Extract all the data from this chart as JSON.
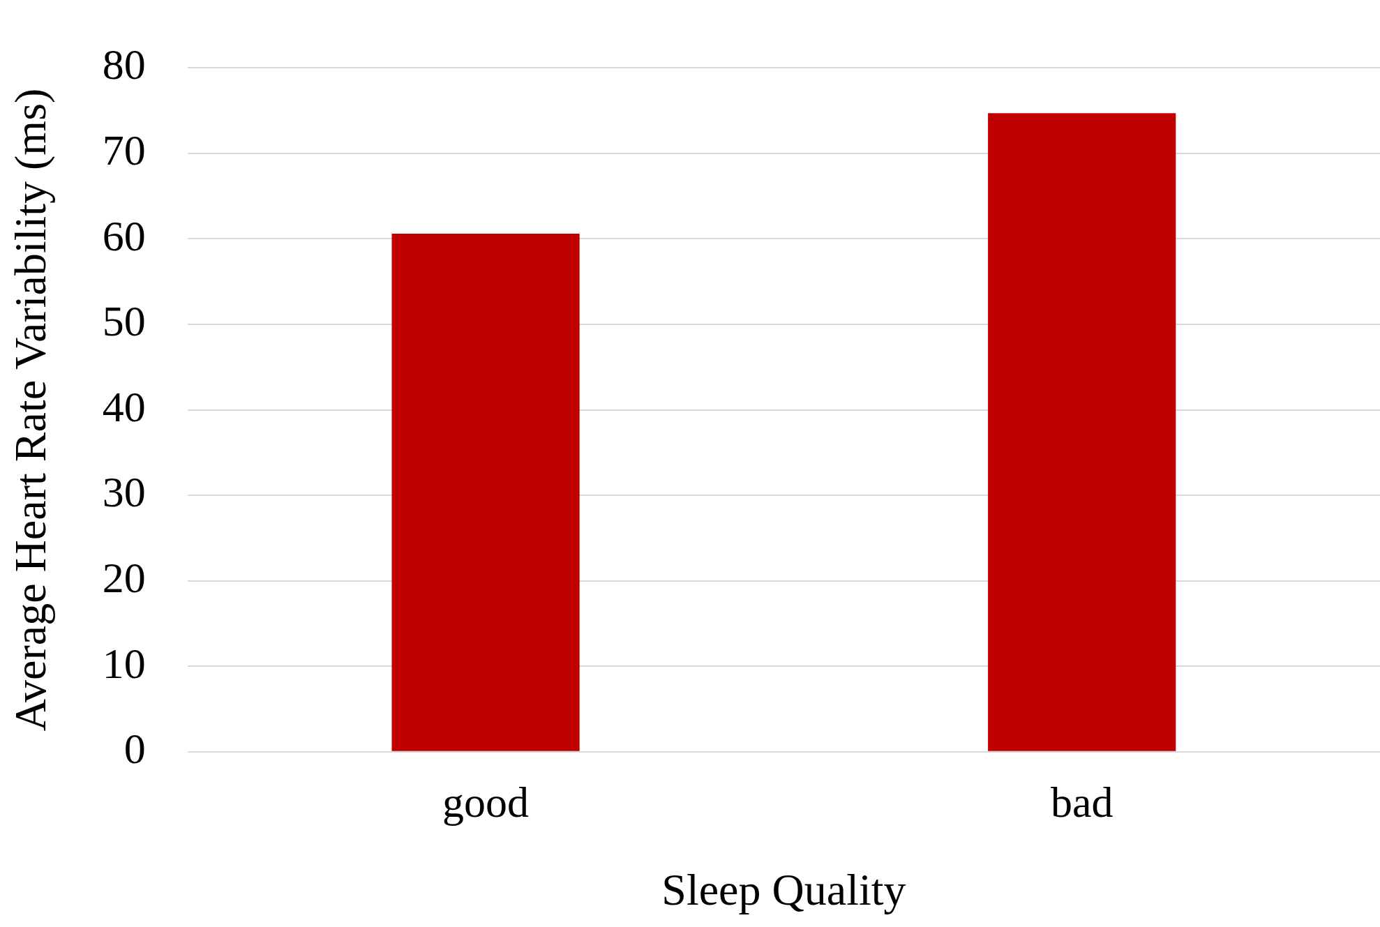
{
  "chart_data": {
    "type": "bar",
    "xlabel": "Sleep Quality",
    "ylabel": "Average Heart Rate Variability (ms)",
    "categories": [
      "good",
      "bad"
    ],
    "values": [
      60.6,
      74.7
    ],
    "color": "#c00000",
    "ylim": [
      0,
      80
    ],
    "yticks": [
      0,
      10,
      20,
      30,
      40,
      50,
      60,
      70,
      80
    ],
    "grid": "y",
    "legend": false
  }
}
